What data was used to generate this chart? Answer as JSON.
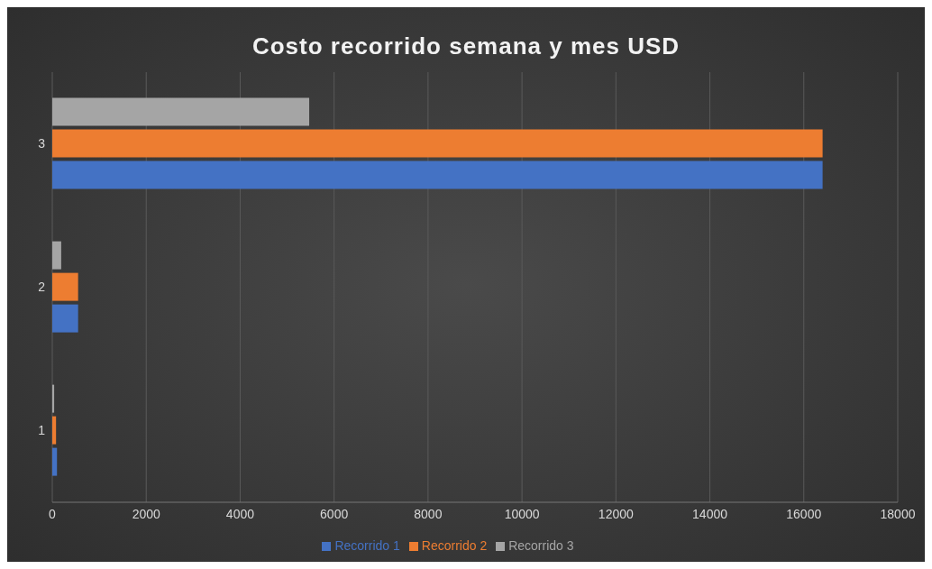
{
  "chart_data": {
    "type": "bar",
    "orientation": "horizontal",
    "title": "Costo recorrido semana y mes USD",
    "categories": [
      "3",
      "2",
      "1"
    ],
    "series": [
      {
        "name": "Recorrido 1",
        "color": "#4472c4",
        "values": [
          16400,
          550,
          100
        ]
      },
      {
        "name": "Recorrido 2",
        "color": "#ed7d31",
        "values": [
          16400,
          550,
          80
        ]
      },
      {
        "name": "Recorrido 3",
        "color": "#a5a5a5",
        "values": [
          5470,
          190,
          40
        ]
      }
    ],
    "xlim": [
      0,
      18000
    ],
    "xticks": [
      0,
      2000,
      4000,
      6000,
      8000,
      10000,
      12000,
      14000,
      16000,
      18000
    ],
    "grid": "x",
    "legend": "bottom"
  }
}
